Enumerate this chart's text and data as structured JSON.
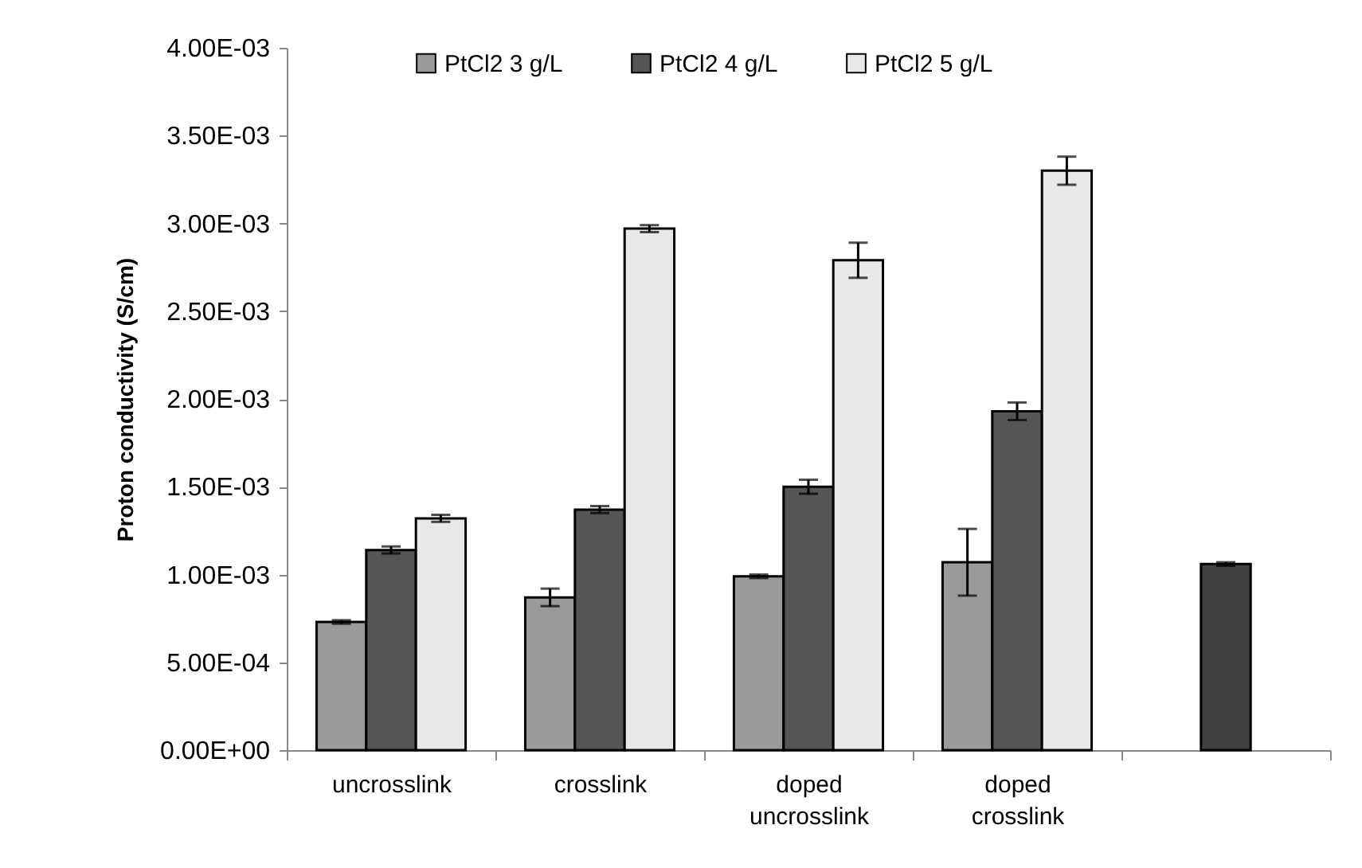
{
  "chart_data": {
    "type": "bar",
    "ylabel": "Proton conductivity (S/cm)",
    "categories": [
      "uncrosslink",
      "crosslink",
      "doped uncrosslink",
      "doped crosslink",
      null
    ],
    "series": [
      {
        "name": "PtCl2 3 g/L",
        "color": "#9a9a9a",
        "values": [
          0.00073,
          0.00087,
          0.00099,
          0.00107,
          null
        ],
        "errors": [
          1e-05,
          5e-05,
          1e-05,
          0.00019,
          null
        ]
      },
      {
        "name": "PtCl2 4 g/L",
        "color": "#555555",
        "values": [
          0.00114,
          0.00137,
          0.0015,
          0.00193,
          null
        ],
        "errors": [
          2e-05,
          2e-05,
          4e-05,
          5e-05,
          null
        ]
      },
      {
        "name": "PtCl2 5 g/L",
        "color": "#e8e8e8",
        "values": [
          0.00132,
          0.00297,
          0.00279,
          0.0033,
          null
        ],
        "errors": [
          2e-05,
          2e-05,
          0.0001,
          8e-05,
          null
        ]
      },
      {
        "color": "#404040",
        "values": [
          null,
          null,
          null,
          null,
          0.00106
        ],
        "errors": [
          null,
          null,
          null,
          null,
          1e-05
        ]
      }
    ],
    "ylim": [
      0,
      0.004
    ],
    "yticks": [
      {
        "value": 0,
        "label": "0.00E+00"
      },
      {
        "value": 0.0005,
        "label": "5.00E-04"
      },
      {
        "value": 0.001,
        "label": "1.00E-03"
      },
      {
        "value": 0.0015,
        "label": "1.50E-03"
      },
      {
        "value": 0.002,
        "label": "2.00E-03"
      },
      {
        "value": 0.0025,
        "label": "2.50E-03"
      },
      {
        "value": 0.003,
        "label": "3.00E-03"
      },
      {
        "value": 0.0035,
        "label": "3.50E-03"
      },
      {
        "value": 0.004,
        "label": "4.00E-03"
      }
    ],
    "legend": "top"
  }
}
